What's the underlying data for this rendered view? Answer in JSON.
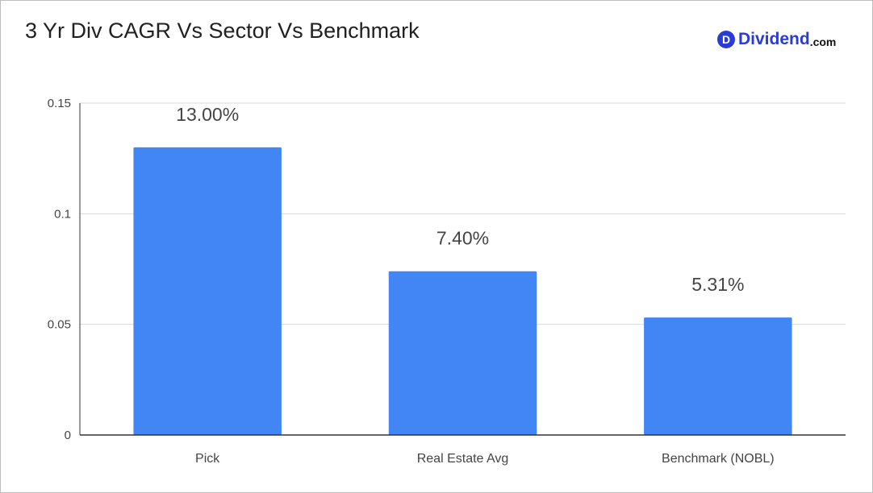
{
  "title": "3 Yr Div CAGR Vs Sector Vs Benchmark",
  "logo": {
    "mark": "D",
    "name": "Dividend",
    "tld": ".com",
    "color": "#2a3bd6"
  },
  "chart_data": {
    "type": "bar",
    "categories": [
      "Pick",
      "Real Estate Avg",
      "Benchmark (NOBL)"
    ],
    "values": [
      0.13,
      0.074,
      0.0531
    ],
    "data_labels": [
      "13.00%",
      "7.40%",
      "5.31%"
    ],
    "yticks": [
      {
        "value": 0,
        "label": "0"
      },
      {
        "value": 0.05,
        "label": "0.05"
      },
      {
        "value": 0.1,
        "label": "0.1"
      },
      {
        "value": 0.15,
        "label": "0.15"
      }
    ],
    "ylim": [
      0,
      0.15
    ],
    "grid": true,
    "bar_color": "#4285f4"
  }
}
